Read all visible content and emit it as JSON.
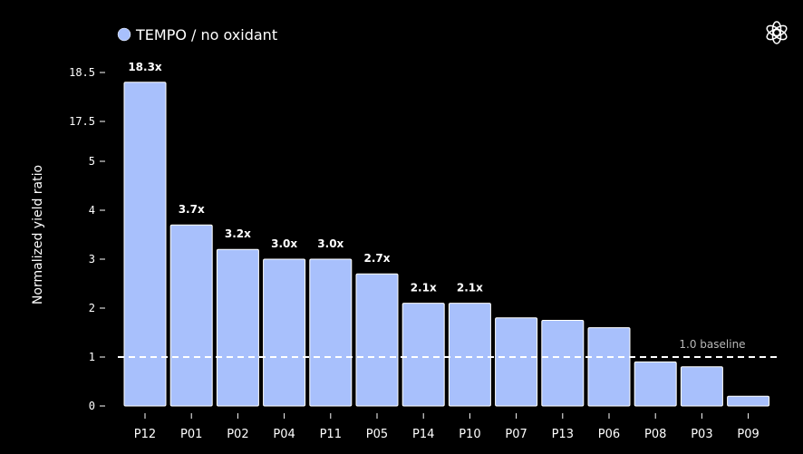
{
  "chart_data": {
    "type": "bar",
    "categories": [
      "P12",
      "P01",
      "P02",
      "P04",
      "P11",
      "P05",
      "P14",
      "P10",
      "P07",
      "P13",
      "P06",
      "P08",
      "P03",
      "P09"
    ],
    "series": [
      {
        "name": "TEMPO / no oxidant",
        "values": [
          18.3,
          3.7,
          3.2,
          3.0,
          3.0,
          2.7,
          2.1,
          2.1,
          1.8,
          1.75,
          1.6,
          0.9,
          0.8,
          0.2
        ],
        "color": "#a8c0fc"
      }
    ],
    "data_labels": [
      "18.3x",
      "3.7x",
      "3.2x",
      "3.0x",
      "3.0x",
      "2.7x",
      "2.1x",
      "2.1x",
      "",
      "",
      "",
      "",
      "",
      ""
    ],
    "xlabel": "",
    "ylabel": "Normalized yield ratio",
    "ylim": [
      0,
      18.5
    ],
    "y_axis_break": [
      5,
      17.5
    ],
    "yticks": [
      {
        "value": 0,
        "label": "0"
      },
      {
        "value": 1,
        "label": "1"
      },
      {
        "value": 2,
        "label": "2"
      },
      {
        "value": 3,
        "label": "3"
      },
      {
        "value": 4,
        "label": "4"
      },
      {
        "value": 5,
        "label": "5"
      },
      {
        "value": 17.5,
        "label": "17.5"
      },
      {
        "value": 18.5,
        "label": "18.5"
      }
    ],
    "reference_line": {
      "value": 1.0,
      "label": "1.0 baseline",
      "style": "dashed",
      "color": "#ffffff"
    },
    "legend_position": "top-left",
    "grid": false
  },
  "icons": {
    "brand": "openai-logo-icon"
  },
  "colors": {
    "background": "#000000",
    "text": "#ffffff",
    "bar": "#a8c0fc",
    "bar_edge": "#ffffff",
    "baseline_label": "#b8b8b8"
  }
}
